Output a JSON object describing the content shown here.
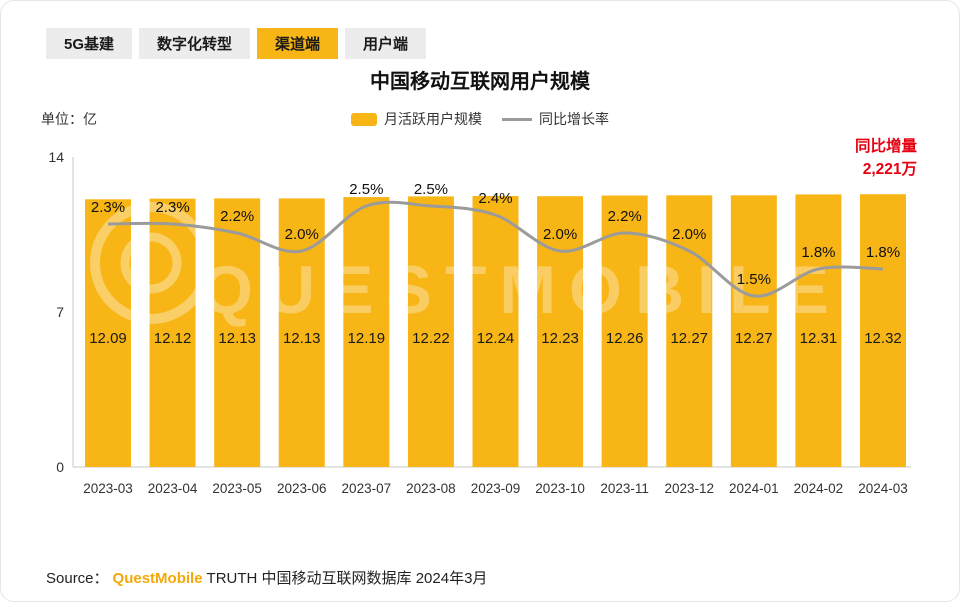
{
  "tabs": [
    {
      "label": "5G基建",
      "active": false
    },
    {
      "label": "数字化转型",
      "active": false
    },
    {
      "label": "渠道端",
      "active": true
    },
    {
      "label": "用户端",
      "active": false
    }
  ],
  "title": "中国移动互联网用户规模",
  "unit_label": "单位：亿",
  "legend": {
    "bar_label": "月活跃用户规模",
    "line_label": "同比增长率"
  },
  "annotation": {
    "line1": "同比增量",
    "line2": "2,221万"
  },
  "watermark": "QUESTMOBILE",
  "colors": {
    "bar": "#F8B516",
    "line": "#9B9B9B",
    "accent_red": "#E60012",
    "source_brand": "#F5A809",
    "tab_inactive_bg": "#ECECEC"
  },
  "chart_data": {
    "type": "bar+line",
    "title": "中国移动互联网用户规模",
    "unit": "亿",
    "categories": [
      "2023-03",
      "2023-04",
      "2023-05",
      "2023-06",
      "2023-07",
      "2023-08",
      "2023-09",
      "2023-10",
      "2023-11",
      "2023-12",
      "2024-01",
      "2024-02",
      "2024-03"
    ],
    "series": [
      {
        "name": "月活跃用户规模",
        "type": "bar",
        "unit": "亿",
        "values": [
          12.09,
          12.12,
          12.13,
          12.13,
          12.19,
          12.22,
          12.24,
          12.23,
          12.26,
          12.27,
          12.27,
          12.31,
          12.32
        ]
      },
      {
        "name": "同比增长率",
        "type": "line",
        "unit": "%",
        "values": [
          2.3,
          2.3,
          2.2,
          2.0,
          2.5,
          2.5,
          2.4,
          2.0,
          2.2,
          2.0,
          1.5,
          1.8,
          1.8
        ]
      }
    ],
    "y_axis": {
      "min": 0,
      "max": 14,
      "ticks": [
        0,
        7,
        14
      ]
    },
    "grid": false,
    "legend_position": "top-center"
  },
  "source": {
    "prefix": "Source：",
    "brand": "QuestMobile",
    "suffix": "TRUTH 中国移动互联网数据库 2024年3月"
  }
}
